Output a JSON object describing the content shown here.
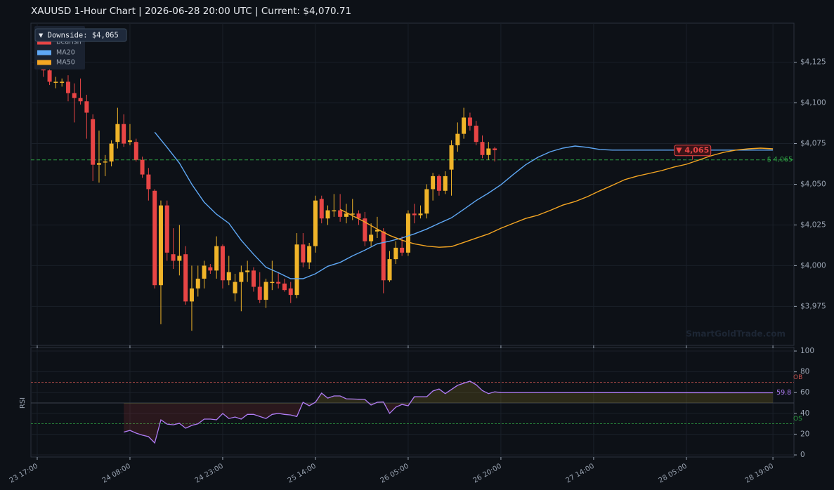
{
  "chart_data": {
    "type": "candlestick",
    "title": "XAUUSD  1-Hour Chart  |  2026-06-28 20:00 UTC  |  Current: $4,070.71",
    "x": [
      1,
      2,
      3,
      4,
      5,
      6,
      7,
      8,
      9,
      10,
      11,
      12,
      13,
      14,
      15,
      16,
      17,
      18,
      19,
      20,
      21,
      22,
      23,
      24,
      25,
      26,
      27,
      28,
      29,
      30,
      31,
      32,
      33,
      34,
      35,
      36,
      37,
      38,
      39,
      40,
      41,
      42,
      43,
      44,
      45,
      46,
      47,
      48,
      49,
      50,
      51,
      52,
      53,
      54,
      55,
      56,
      57,
      58,
      59,
      60,
      61,
      62,
      63,
      64,
      65,
      66,
      67,
      68,
      69,
      70,
      71,
      72,
      73,
      74
    ],
    "open": [
      4123,
      4120,
      4113,
      4113,
      4113,
      4106,
      4103,
      4101,
      4090,
      4062,
      4064,
      4064,
      4076,
      4087,
      4076,
      4076,
      4065,
      4056,
      4046,
      3988,
      4037,
      4007,
      4003,
      4007,
      3978,
      3986,
      3992,
      3999,
      3997,
      4012,
      3991,
      3983,
      3990,
      3996,
      3997,
      3987,
      3979,
      3990,
      3990,
      3989,
      3986,
      3982,
      4013,
      4002,
      4012,
      4041,
      4029,
      4034,
      4034,
      4030,
      4032,
      4032,
      4029,
      4015,
      4021,
      4021,
      3991,
      4004,
      4011,
      4008,
      4032,
      4031,
      4032,
      4047,
      4055,
      4046,
      4059,
      4074,
      4081,
      4091,
      4086,
      4076,
      4068,
      4072
    ],
    "high": [
      4130,
      4123,
      4116,
      4115,
      4117,
      4112,
      4115,
      4105,
      4093,
      4083,
      4068,
      4077,
      4097,
      4093,
      4087,
      4078,
      4067,
      4060,
      4047,
      4040,
      4040,
      4023,
      4025,
      4012,
      4000,
      4000,
      4003,
      4001,
      4018,
      4013,
      4006,
      3995,
      4000,
      4003,
      3999,
      3996,
      3992,
      4003,
      3996,
      3992,
      3990,
      4020,
      4020,
      4014,
      4043,
      4043,
      4037,
      4044,
      4044,
      4038,
      4041,
      4034,
      4033,
      4026,
      4030,
      4023,
      4009,
      4015,
      4018,
      4034,
      4038,
      4037,
      4050,
      4057,
      4056,
      4058,
      4077,
      4088,
      4097,
      4094,
      4089,
      4080,
      4076,
      4073
    ],
    "low": [
      4116,
      4111,
      4109,
      4110,
      4101,
      4088,
      4099,
      4078,
      4052,
      4051,
      4055,
      4061,
      4072,
      4073,
      4074,
      4064,
      4054,
      4040,
      3986,
      3964,
      4003,
      3998,
      3994,
      3976,
      3960,
      3981,
      3986,
      3995,
      3992,
      3986,
      3988,
      3978,
      3972,
      3990,
      3984,
      3977,
      3974,
      3985,
      3986,
      3984,
      3977,
      3980,
      3999,
      3998,
      4008,
      4026,
      4025,
      4030,
      4027,
      4026,
      4028,
      4025,
      4012,
      4012,
      4017,
      3983,
      3990,
      4001,
      4006,
      4006,
      4026,
      4029,
      4029,
      4040,
      4043,
      4044,
      4043,
      4070,
      4078,
      4083,
      4074,
      4066,
      4065,
      4064
    ],
    "close": [
      4120,
      4113,
      4113,
      4113,
      4106,
      4103,
      4101,
      4094,
      4062,
      4063,
      4064,
      4075,
      4087,
      4075,
      4077,
      4065,
      4056,
      4047,
      3988,
      4037,
      4008,
      4003,
      4006,
      3978,
      3986,
      3992,
      4000,
      3997,
      4012,
      3991,
      3996,
      3990,
      3996,
      3997,
      3987,
      3979,
      3990,
      3990,
      3989,
      3985,
      3982,
      4013,
      4002,
      4012,
      4040,
      4029,
      4034,
      4034,
      4030,
      4032,
      4032,
      4029,
      4015,
      4019,
      4022,
      3991,
      4004,
      4011,
      4008,
      4032,
      4031,
      4032,
      4047,
      4055,
      4046,
      4055,
      4074,
      4081,
      4091,
      4086,
      4076,
      4068,
      4072,
      4071
    ],
    "up_color": "#f0b429",
    "down_color": "#e84545",
    "down_name": "Bearish",
    "series": [
      {
        "name": "MA20",
        "color": "#5fa8f5",
        "x": [
          19,
          21,
          23,
          25,
          27,
          29,
          31,
          33,
          35,
          37,
          39,
          41,
          43,
          45,
          47,
          49,
          51,
          53,
          55,
          57,
          59,
          61,
          63,
          65,
          67,
          69,
          71,
          73,
          75,
          77,
          79,
          81,
          83,
          85,
          87,
          89,
          91,
          93,
          95,
          105,
          119
        ],
        "values": [
          4082,
          4072.7,
          4063,
          4050,
          4039,
          4031.6,
          4026,
          4015.6,
          4007,
          3999,
          3995.7,
          3992,
          3992,
          3995,
          3999.6,
          4002,
          4006,
          4009.5,
          4013.4,
          4015,
          4017,
          4019.5,
          4022.5,
          4026,
          4029.4,
          4034.6,
          4040,
          4044.6,
          4049.7,
          4056,
          4062,
          4066.6,
          4070,
          4072.2,
          4073.5,
          4072.7,
          4071.4,
          4071,
          4071,
          4071,
          4071
        ]
      },
      {
        "name": "MA50",
        "color": "#f5a623",
        "x": [
          49,
          51,
          53,
          55,
          57,
          59,
          61,
          63,
          65,
          67,
          69,
          71,
          73,
          75,
          77,
          79,
          81,
          83,
          85,
          87,
          89,
          91,
          93,
          95,
          97,
          99,
          101,
          103,
          105,
          107,
          109,
          111,
          113,
          115,
          117,
          119
        ],
        "values": [
          4034.6,
          4030.7,
          4026.8,
          4022.5,
          4018.6,
          4015.6,
          4013.4,
          4012,
          4011.3,
          4011.7,
          4014.3,
          4016.9,
          4019.5,
          4023,
          4026,
          4029,
          4031,
          4034,
          4037.2,
          4039.4,
          4042.4,
          4046,
          4049.3,
          4052.8,
          4055,
          4056.7,
          4058.4,
          4060.6,
          4062.3,
          4064.9,
          4067.5,
          4069.6,
          4071,
          4071.8,
          4072.2,
          4071.8
        ]
      }
    ],
    "xlim": [
      -1.02,
      122.4
    ],
    "xticks": [
      {
        "value": 0,
        "label": "23 17:00"
      },
      {
        "value": 15,
        "label": "24 08:00"
      },
      {
        "value": 30,
        "label": "24 23:00"
      },
      {
        "value": 45,
        "label": "25 14:00"
      },
      {
        "value": 60,
        "label": "26 05:00"
      },
      {
        "value": 75,
        "label": "26 20:00"
      },
      {
        "value": 90,
        "label": "27 14:00"
      },
      {
        "value": 105,
        "label": "28 05:00"
      },
      {
        "value": 119,
        "label": "28 19:00"
      }
    ],
    "ylim": [
      3951,
      4149
    ],
    "yticks": [
      {
        "value": 3975,
        "label": "$3,975"
      },
      {
        "value": 4000,
        "label": "$4,000"
      },
      {
        "value": 4025,
        "label": "$4,025"
      },
      {
        "value": 4050,
        "label": "$4,050"
      },
      {
        "value": 4075,
        "label": "$4,075"
      },
      {
        "value": 4100,
        "label": "$4,100"
      },
      {
        "value": 4125,
        "label": "$4,125"
      }
    ],
    "grid": true,
    "level": {
      "value": 4065,
      "label": "$ 4,065",
      "color": "#2ea043",
      "tooltip": "▼ Downside: $4,065",
      "marker_label": "▼ 4,065",
      "marker_x": 106
    },
    "watermark": "SmartGoldTrade.com",
    "rsi": {
      "label": "RSI",
      "color": "#b07cf5",
      "x": [
        14,
        15,
        16,
        17,
        18,
        19,
        20,
        21,
        22,
        23,
        24,
        25,
        26,
        27,
        28,
        29,
        30,
        31,
        32,
        33,
        34,
        35,
        36,
        37,
        38,
        39,
        40,
        41,
        42,
        43,
        44,
        45,
        46,
        47,
        48,
        49,
        50,
        51,
        52,
        53,
        54,
        55,
        56,
        57,
        58,
        59,
        60,
        61,
        62,
        63,
        64,
        65,
        66,
        67,
        68,
        69,
        70,
        71,
        72,
        73,
        74,
        75,
        119
      ],
      "values": [
        22,
        23.6,
        21,
        19,
        17.6,
        11.5,
        33.8,
        29.7,
        29,
        30.4,
        25.7,
        28.4,
        30,
        34.5,
        34.5,
        33.8,
        39.9,
        35,
        36.5,
        34.5,
        39,
        39,
        37,
        35,
        39,
        40,
        39,
        38.5,
        37,
        50.7,
        47.3,
        50.7,
        59.5,
        54.7,
        56.8,
        56.8,
        54,
        53.8,
        53.6,
        53.4,
        48,
        50.7,
        51,
        40,
        46,
        48.6,
        47.3,
        56,
        56,
        56,
        61.5,
        63.5,
        59,
        63,
        67,
        69,
        71,
        67.6,
        62,
        59,
        60.8,
        60,
        59.8
      ],
      "value_label": "59.8",
      "ylim": [
        -2,
        103.4
      ],
      "yticks": [
        0,
        20,
        40,
        60,
        80,
        100
      ],
      "mid": 50,
      "ob": {
        "value": 70,
        "label": "OB",
        "color": "#c0504d"
      },
      "os": {
        "value": 30,
        "label": "OS",
        "color": "#2ea043"
      }
    }
  }
}
